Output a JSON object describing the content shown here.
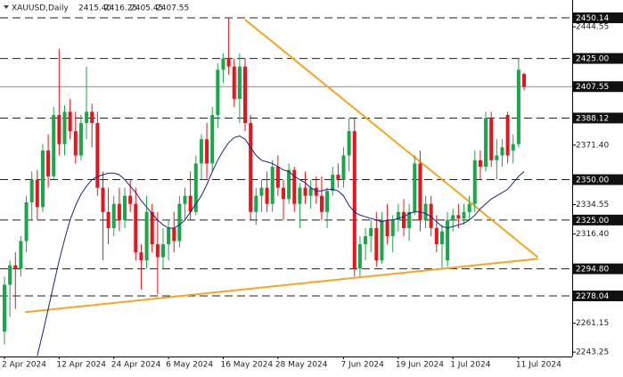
{
  "chart_data": {
    "type": "candlestick",
    "symbol": "XAUUSD,Daily",
    "ohlc": [
      "2415.40",
      "2416.25",
      "2405.45",
      "2407.55"
    ],
    "up_color": "#1aa64a",
    "down_color": "#e8141c",
    "ylim": [
      2240.54,
      2461.17
    ],
    "yticks": [
      2444.55,
      {
        "value": 2371.4,
        "label": "2371.40"
      },
      2334.55,
      {
        "value": 2316.4,
        "label": "2316.40"
      },
      2261.15,
      2243.25
    ],
    "levels": [
      {
        "value": 2450.14,
        "label": "2450.14"
      },
      {
        "value": 2425,
        "label": "2425.00"
      },
      {
        "value": 2388.12,
        "label": "2388.12"
      },
      {
        "value": 2350,
        "label": "2350.00"
      },
      {
        "value": 2325,
        "label": "2325.00"
      },
      {
        "value": 2294.8,
        "label": "2294.80"
      },
      {
        "value": 2278.04,
        "label": "2278.04"
      }
    ],
    "current_price": {
      "value": 2407.55,
      "label": "2407.55"
    },
    "categories": [
      "2 Apr 2024",
      null,
      null,
      null,
      null,
      null,
      null,
      null,
      null,
      null,
      "12 Apr 2024",
      null,
      null,
      null,
      null,
      null,
      null,
      null,
      null,
      null,
      "24 Apr 2024",
      null,
      null,
      null,
      null,
      null,
      null,
      null,
      null,
      null,
      "6 May 2024",
      null,
      null,
      null,
      null,
      null,
      null,
      null,
      null,
      null,
      "16 May 2024",
      null,
      null,
      null,
      null,
      null,
      null,
      null,
      null,
      null,
      "28 May 2024",
      null,
      null,
      null,
      null,
      null,
      null,
      null,
      null,
      null,
      null,
      null,
      "7 Jun 2024",
      null,
      null,
      null,
      null,
      null,
      null,
      null,
      null,
      null,
      "19 Jun 2024",
      null,
      null,
      null,
      null,
      null,
      null,
      null,
      null,
      null,
      "1 Jul 2024",
      null,
      null,
      null,
      null,
      null,
      null,
      null,
      null,
      null,
      null,
      null,
      "11 Jul 2024",
      null
    ],
    "candles": [
      [
        2256,
        2290,
        2248,
        2285
      ],
      [
        2285,
        2300,
        2265,
        2297
      ],
      [
        2297,
        2305,
        2270,
        2295
      ],
      [
        2295,
        2315,
        2290,
        2312
      ],
      [
        2312,
        2340,
        2305,
        2336
      ],
      [
        2336,
        2355,
        2325,
        2350
      ],
      [
        2350,
        2356,
        2325,
        2333
      ],
      [
        2333,
        2372,
        2330,
        2368
      ],
      [
        2368,
        2378,
        2345,
        2352
      ],
      [
        2352,
        2395,
        2350,
        2390
      ],
      [
        2390,
        2431,
        2365,
        2372
      ],
      [
        2372,
        2396,
        2365,
        2392
      ],
      [
        2392,
        2400,
        2375,
        2380
      ],
      [
        2380,
        2392,
        2360,
        2365
      ],
      [
        2365,
        2390,
        2362,
        2385
      ],
      [
        2385,
        2420,
        2375,
        2392
      ],
      [
        2392,
        2397,
        2370,
        2385
      ],
      [
        2385,
        2392,
        2340,
        2345
      ],
      [
        2345,
        2355,
        2300,
        2330
      ],
      [
        2330,
        2345,
        2310,
        2320
      ],
      [
        2320,
        2340,
        2315,
        2335
      ],
      [
        2335,
        2345,
        2318,
        2325
      ],
      [
        2325,
        2345,
        2320,
        2340
      ],
      [
        2340,
        2350,
        2330,
        2335
      ],
      [
        2335,
        2345,
        2300,
        2305
      ],
      [
        2305,
        2310,
        2282,
        2300
      ],
      [
        2300,
        2340,
        2295,
        2330
      ],
      [
        2330,
        2335,
        2305,
        2310
      ],
      [
        2310,
        2330,
        2279,
        2302
      ],
      [
        2302,
        2320,
        2295,
        2310
      ],
      [
        2310,
        2325,
        2300,
        2320
      ],
      [
        2320,
        2330,
        2305,
        2312
      ],
      [
        2312,
        2340,
        2308,
        2335
      ],
      [
        2335,
        2345,
        2325,
        2340
      ],
      [
        2340,
        2355,
        2325,
        2330
      ],
      [
        2330,
        2365,
        2328,
        2360
      ],
      [
        2360,
        2378,
        2350,
        2375
      ],
      [
        2375,
        2385,
        2350,
        2360
      ],
      [
        2360,
        2395,
        2355,
        2390
      ],
      [
        2390,
        2422,
        2382,
        2418
      ],
      [
        2418,
        2428,
        2410,
        2425
      ],
      [
        2425,
        2450,
        2415,
        2420
      ],
      [
        2420,
        2425,
        2395,
        2400
      ],
      [
        2400,
        2428,
        2385,
        2420
      ],
      [
        2420,
        2425,
        2380,
        2385
      ],
      [
        2385,
        2390,
        2325,
        2330
      ],
      [
        2330,
        2345,
        2322,
        2340
      ],
      [
        2340,
        2350,
        2330,
        2345
      ],
      [
        2345,
        2355,
        2330,
        2335
      ],
      [
        2335,
        2362,
        2330,
        2358
      ],
      [
        2358,
        2365,
        2340,
        2345
      ],
      [
        2345,
        2350,
        2325,
        2338
      ],
      [
        2338,
        2360,
        2335,
        2356
      ],
      [
        2356,
        2358,
        2330,
        2335
      ],
      [
        2335,
        2348,
        2320,
        2345
      ],
      [
        2345,
        2355,
        2335,
        2340
      ],
      [
        2340,
        2350,
        2332,
        2345
      ],
      [
        2345,
        2352,
        2335,
        2340
      ],
      [
        2340,
        2352,
        2325,
        2330
      ],
      [
        2330,
        2345,
        2320,
        2343
      ],
      [
        2343,
        2358,
        2340,
        2353
      ],
      [
        2353,
        2360,
        2345,
        2350
      ],
      [
        2350,
        2370,
        2345,
        2365
      ],
      [
        2365,
        2388,
        2355,
        2380
      ],
      [
        2380,
        2388,
        2290,
        2295
      ],
      [
        2295,
        2315,
        2290,
        2310
      ],
      [
        2310,
        2320,
        2300,
        2315
      ],
      [
        2315,
        2325,
        2305,
        2320
      ],
      [
        2320,
        2330,
        2296,
        2300
      ],
      [
        2300,
        2330,
        2298,
        2325
      ],
      [
        2325,
        2335,
        2310,
        2315
      ],
      [
        2315,
        2328,
        2305,
        2325
      ],
      [
        2325,
        2335,
        2318,
        2330
      ],
      [
        2330,
        2338,
        2315,
        2320
      ],
      [
        2320,
        2335,
        2312,
        2330
      ],
      [
        2330,
        2365,
        2328,
        2360
      ],
      [
        2360,
        2368,
        2318,
        2325
      ],
      [
        2325,
        2340,
        2320,
        2335
      ],
      [
        2335,
        2340,
        2315,
        2320
      ],
      [
        2320,
        2328,
        2305,
        2310
      ],
      [
        2310,
        2322,
        2295,
        2318
      ],
      [
        2300,
        2330,
        2296,
        2325
      ],
      [
        2325,
        2332,
        2318,
        2328
      ],
      [
        2328,
        2335,
        2320,
        2326
      ],
      [
        2326,
        2335,
        2322,
        2330
      ],
      [
        2330,
        2340,
        2325,
        2335
      ],
      [
        2335,
        2368,
        2330,
        2362
      ],
      [
        2362,
        2368,
        2350,
        2358
      ],
      [
        2358,
        2392,
        2355,
        2388
      ],
      [
        2388,
        2392,
        2358,
        2362
      ],
      [
        2362,
        2375,
        2350,
        2365
      ],
      [
        2365,
        2375,
        2358,
        2370
      ],
      [
        2390,
        2392,
        2360,
        2365
      ],
      [
        2368,
        2378,
        2360,
        2372
      ],
      [
        2372,
        2425,
        2370,
        2418
      ],
      [
        2415.4,
        2416.25,
        2405.45,
        2407.55
      ]
    ],
    "ma": {
      "color": "#1a237e",
      "values": [
        null,
        null,
        null,
        null,
        null,
        null,
        2241,
        2255,
        2270,
        2285,
        2300,
        2313,
        2325,
        2334,
        2341,
        2346,
        2350,
        2352,
        2353,
        2354,
        2354,
        2353,
        2350,
        2346,
        2342,
        2337,
        2333,
        2329,
        2325,
        2322,
        2320,
        2320,
        2322,
        2325,
        2330,
        2335,
        2340,
        2347,
        2355,
        2362,
        2368,
        2373,
        2376,
        2377,
        2375,
        2370,
        2365,
        2362,
        2361,
        2360,
        2358,
        2356,
        2355,
        2352,
        2350,
        2348,
        2345,
        2343,
        2343,
        2344,
        2344,
        2343,
        2340,
        2334,
        2330,
        2328,
        2327,
        2326,
        2325,
        2324,
        2325,
        2325,
        2326,
        2327,
        2329,
        2330,
        2330,
        2329,
        2327,
        2324,
        2321,
        2320,
        2321,
        2322,
        2323,
        2325,
        2328,
        2332,
        2335,
        2338,
        2340,
        2342,
        2344,
        2348,
        2352,
        2355
      ]
    },
    "trendlines": [
      {
        "color": "#f5a623",
        "x": [
          3.8,
          97.5
        ],
        "y": [
          2268,
          2301
        ]
      },
      {
        "color": "#f5a623",
        "x": [
          44,
          97.5
        ],
        "y": [
          2449,
          2302
        ]
      }
    ]
  }
}
